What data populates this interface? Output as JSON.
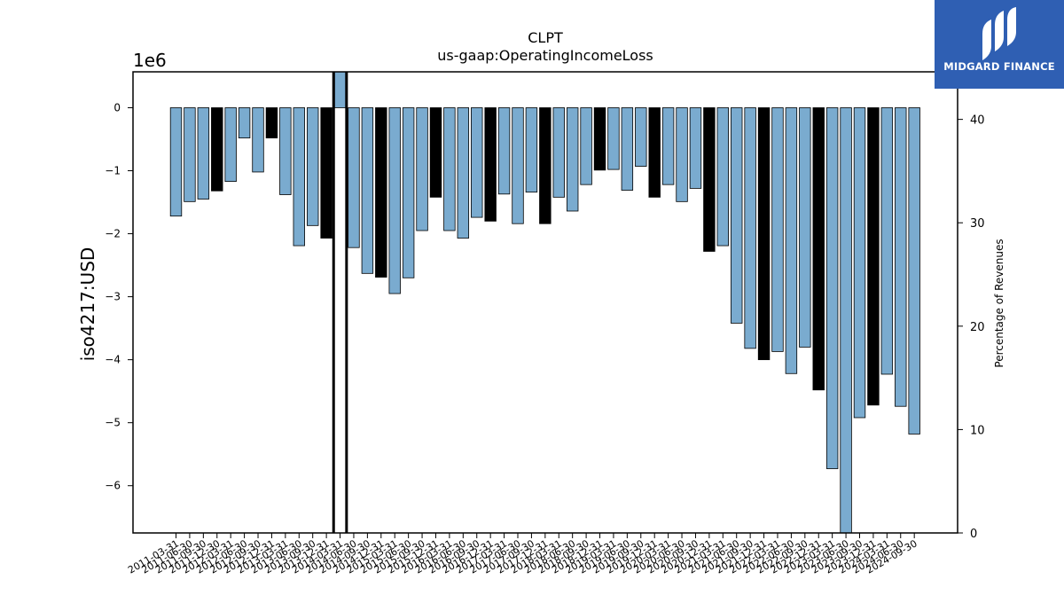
{
  "chart_data": {
    "type": "bar",
    "title": "CLPT",
    "subtitle": "us-gaap:OperatingIncomeLoss",
    "ylabel": "iso4217:USD",
    "y_offset_label": "1e6",
    "y2label": "Percentage of Revenues",
    "ylim": [
      -6.75,
      0.57
    ],
    "y2lim": [
      0,
      44.6
    ],
    "yticks": [
      "0",
      "−1",
      "−2",
      "−3",
      "−4",
      "−5",
      "−6"
    ],
    "y2ticks": [
      "0",
      "10",
      "20",
      "30",
      "40"
    ],
    "grid": false,
    "legend": "none",
    "colors": {
      "bar": "#7aabcf",
      "highlight": "#000000",
      "edge": "#000000"
    },
    "x_tick_labels": [
      "2011-03-31",
      "2011-06-30",
      "2011-09-30",
      "2011-12-30",
      "2012-03-31",
      "2012-06-30",
      "2012-09-30",
      "2012-12-31",
      "2013-03-31",
      "2013-06-30",
      "2013-09-30",
      "2013-12-31",
      "2014-03-31",
      "2014-06-30",
      "2014-09-30",
      "2014-12-31",
      "2015-03-31",
      "2015-06-30",
      "2015-09-30",
      "2015-12-31",
      "2016-03-31",
      "2016-06-30",
      "2016-09-30",
      "2016-12-31",
      "2017-03-31",
      "2017-06-30",
      "2017-09-30",
      "2017-12-31",
      "2018-03-31",
      "2018-06-30",
      "2018-09-30",
      "2018-12-31",
      "2019-03-31",
      "2019-06-30",
      "2019-09-30",
      "2019-12-31",
      "2020-03-31",
      "2020-06-30",
      "2020-09-30",
      "2020-12-31",
      "2021-03-31",
      "2021-06-30",
      "2021-09-30",
      "2021-12-31",
      "2022-03-31",
      "2022-06-30",
      "2022-09-30",
      "2022-12-31",
      "2023-03-31",
      "2023-06-30",
      "2023-09-30",
      "2023-12-31",
      "2024-03-31",
      "2024-06-30",
      "2024-09-30"
    ],
    "values": [
      -1.72,
      -1.49,
      -1.45,
      -1.32,
      -1.17,
      -0.48,
      -1.02,
      -0.48,
      -1.38,
      -2.19,
      -1.87,
      -2.07,
      0.57,
      -2.22,
      -2.63,
      -2.69,
      -2.95,
      -2.7,
      -1.95,
      -1.42,
      -1.95,
      -2.07,
      -1.74,
      -1.8,
      -1.37,
      -1.84,
      -1.34,
      -1.84,
      -1.42,
      -1.64,
      -1.22,
      -0.99,
      -0.98,
      -1.31,
      -0.93,
      -1.42,
      -1.22,
      -1.49,
      -1.28,
      -2.28,
      -2.19,
      -3.42,
      -3.82,
      -4.0,
      -3.87,
      -4.22,
      -3.8,
      -4.48,
      -5.73,
      -6.75,
      -4.92,
      -4.72,
      -4.23,
      -4.74,
      -5.18
    ],
    "highlight": [
      false,
      false,
      false,
      true,
      false,
      false,
      false,
      true,
      false,
      false,
      false,
      true,
      false,
      false,
      false,
      true,
      false,
      false,
      false,
      true,
      false,
      false,
      false,
      true,
      false,
      false,
      false,
      true,
      false,
      false,
      false,
      true,
      false,
      false,
      false,
      true,
      false,
      false,
      false,
      true,
      false,
      false,
      false,
      true,
      false,
      false,
      false,
      true,
      false,
      false,
      false,
      true,
      false,
      false,
      false
    ],
    "thick_outline": [
      12
    ]
  },
  "logo": {
    "text": "MIDGARD FINANCE"
  }
}
